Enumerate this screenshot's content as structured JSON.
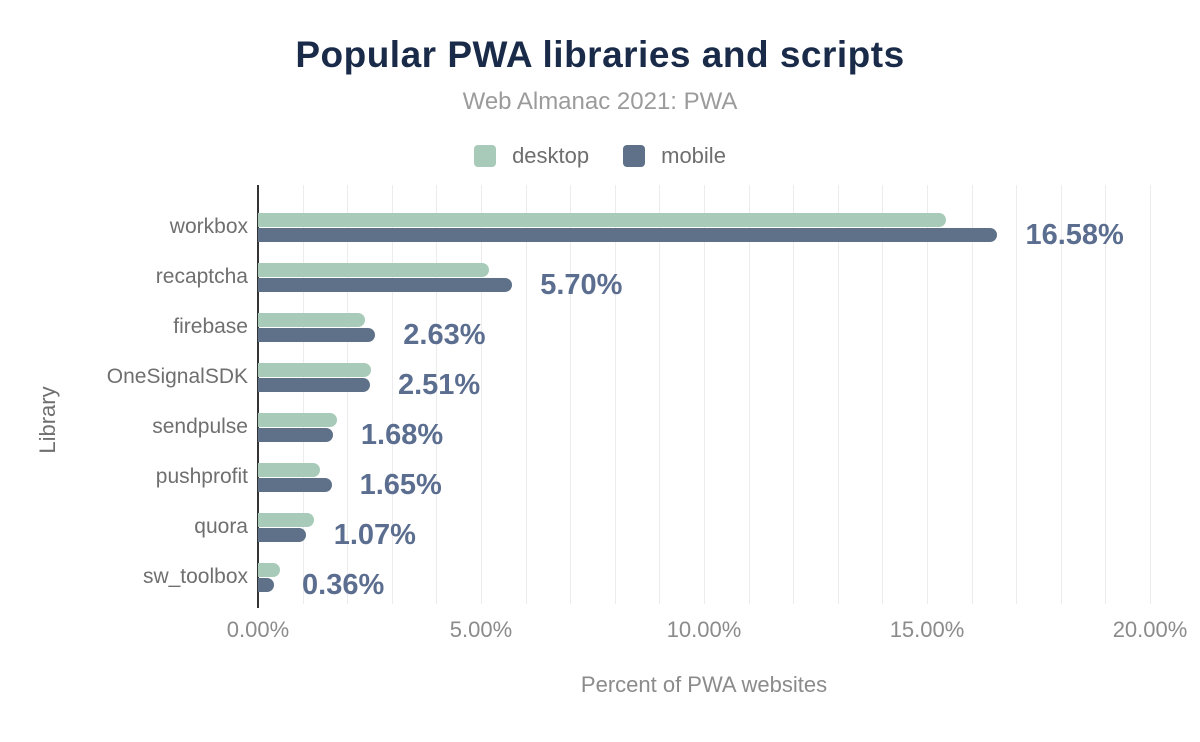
{
  "chart_data": {
    "type": "bar",
    "orientation": "horizontal",
    "title": "Popular PWA libraries and scripts",
    "subtitle": "Web Almanac 2021: PWA",
    "xlabel": "Percent of PWA websites",
    "ylabel": "Library",
    "categories": [
      "workbox",
      "recaptcha",
      "firebase",
      "OneSignalSDK",
      "sendpulse",
      "pushprofit",
      "quora",
      "sw_toolbox"
    ],
    "series": [
      {
        "name": "desktop",
        "color": "#a7cbb8",
        "values": [
          15.43,
          5.18,
          2.4,
          2.54,
          1.77,
          1.39,
          1.26,
          0.49
        ]
      },
      {
        "name": "mobile",
        "color": "#5e7189",
        "values": [
          16.58,
          5.7,
          2.63,
          2.51,
          1.68,
          1.65,
          1.07,
          0.36
        ]
      }
    ],
    "value_labels": [
      "16.58%",
      "5.70%",
      "2.63%",
      "2.51%",
      "1.68%",
      "1.65%",
      "1.07%",
      "0.36%"
    ],
    "value_labels_series": "mobile",
    "x_ticks": [
      {
        "label": "0.00%",
        "value": 0
      },
      {
        "label": "5.00%",
        "value": 5
      },
      {
        "label": "10.00%",
        "value": 10
      },
      {
        "label": "15.00%",
        "value": 15
      },
      {
        "label": "20.00%",
        "value": 20
      }
    ],
    "xlim": [
      0,
      20
    ],
    "grid": {
      "interval": 1,
      "color": "#ececec",
      "on": true
    },
    "legend_position": "top",
    "colors": {
      "title_text": "#1a2b49",
      "subtitle_text": "#9b9b9b",
      "legend_text": "#6e6e6e",
      "axis_line": "#333333",
      "tick_text": "#8b8b8b",
      "category_text": "#6f6f6f",
      "value_label_text": "#5b6e90",
      "background": "#ffffff"
    }
  }
}
